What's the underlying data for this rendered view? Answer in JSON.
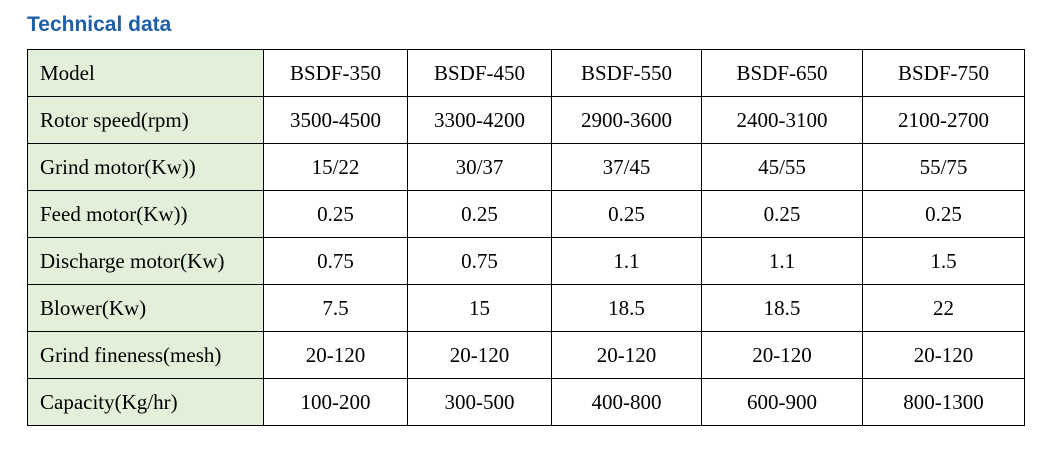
{
  "header": {
    "title": "Technical data"
  },
  "table": {
    "columns": [
      "Model",
      "BSDF-350",
      "BSDF-450",
      "BSDF-550",
      "BSDF-650",
      "BSDF-750"
    ],
    "rows": [
      [
        "Rotor speed(rpm)",
        "3500-4500",
        "3300-4200",
        "2900-3600",
        "2400-3100",
        "2100-2700"
      ],
      [
        "Grind motor(Kw))",
        "15/22",
        "30/37",
        "37/45",
        "45/55",
        "55/75"
      ],
      [
        "Feed motor(Kw))",
        "0.25",
        "0.25",
        "0.25",
        "0.25",
        "0.25"
      ],
      [
        "Discharge motor(Kw)",
        "0.75",
        "0.75",
        "1.1",
        "1.1",
        "1.5"
      ],
      [
        "Blower(Kw)",
        "7.5",
        "15",
        "18.5",
        "18.5",
        "22"
      ],
      [
        "Grind fineness(mesh)",
        "20-120",
        "20-120",
        "20-120",
        "20-120",
        "20-120"
      ],
      [
        "Capacity(Kg/hr)",
        "100-200",
        "300-500",
        "400-800",
        "600-900",
        "800-1300"
      ]
    ]
  }
}
